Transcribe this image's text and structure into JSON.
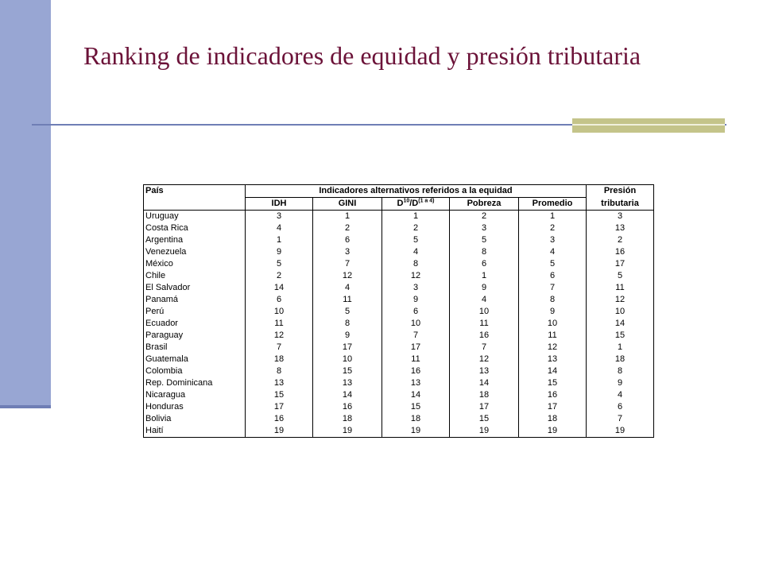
{
  "title": "Ranking de indicadores de equidad y presión tributaria",
  "table": {
    "col_pais": "País",
    "group_header": "Indicadores alternativos referidos a la equidad",
    "presion_line1": "Presión",
    "presion_line2": "tributaria",
    "sub_headers": {
      "idh": "IDH",
      "gini": "GINI",
      "d_main": "D",
      "d_sup1": "10",
      "d_mid": "/D",
      "d_sup2": "(1 a 4)",
      "pobreza": "Pobreza",
      "promedio": "Promedio"
    },
    "rows": [
      {
        "pais": "Uruguay",
        "idh": "3",
        "gini": "1",
        "d": "1",
        "pobreza": "2",
        "promedio": "1",
        "presion": "3"
      },
      {
        "pais": "Costa Rica",
        "idh": "4",
        "gini": "2",
        "d": "2",
        "pobreza": "3",
        "promedio": "2",
        "presion": "13"
      },
      {
        "pais": "Argentina",
        "idh": "1",
        "gini": "6",
        "d": "5",
        "pobreza": "5",
        "promedio": "3",
        "presion": "2"
      },
      {
        "pais": "Venezuela",
        "idh": "9",
        "gini": "3",
        "d": "4",
        "pobreza": "8",
        "promedio": "4",
        "presion": "16"
      },
      {
        "pais": "México",
        "idh": "5",
        "gini": "7",
        "d": "8",
        "pobreza": "6",
        "promedio": "5",
        "presion": "17"
      },
      {
        "pais": "Chile",
        "idh": "2",
        "gini": "12",
        "d": "12",
        "pobreza": "1",
        "promedio": "6",
        "presion": "5"
      },
      {
        "pais": "El Salvador",
        "idh": "14",
        "gini": "4",
        "d": "3",
        "pobreza": "9",
        "promedio": "7",
        "presion": "11"
      },
      {
        "pais": "Panamá",
        "idh": "6",
        "gini": "11",
        "d": "9",
        "pobreza": "4",
        "promedio": "8",
        "presion": "12"
      },
      {
        "pais": "Perú",
        "idh": "10",
        "gini": "5",
        "d": "6",
        "pobreza": "10",
        "promedio": "9",
        "presion": "10"
      },
      {
        "pais": "Ecuador",
        "idh": "11",
        "gini": "8",
        "d": "10",
        "pobreza": "11",
        "promedio": "10",
        "presion": "14"
      },
      {
        "pais": "Paraguay",
        "idh": "12",
        "gini": "9",
        "d": "7",
        "pobreza": "16",
        "promedio": "11",
        "presion": "15"
      },
      {
        "pais": "Brasil",
        "idh": "7",
        "gini": "17",
        "d": "17",
        "pobreza": "7",
        "promedio": "12",
        "presion": "1"
      },
      {
        "pais": "Guatemala",
        "idh": "18",
        "gini": "10",
        "d": "11",
        "pobreza": "12",
        "promedio": "13",
        "presion": "18"
      },
      {
        "pais": "Colombia",
        "idh": "8",
        "gini": "15",
        "d": "16",
        "pobreza": "13",
        "promedio": "14",
        "presion": "8"
      },
      {
        "pais": "Rep. Dominicana",
        "idh": "13",
        "gini": "13",
        "d": "13",
        "pobreza": "14",
        "promedio": "15",
        "presion": "9"
      },
      {
        "pais": "Nicaragua",
        "idh": "15",
        "gini": "14",
        "d": "14",
        "pobreza": "18",
        "promedio": "16",
        "presion": "4"
      },
      {
        "pais": "Honduras",
        "idh": "17",
        "gini": "16",
        "d": "15",
        "pobreza": "17",
        "promedio": "17",
        "presion": "6"
      },
      {
        "pais": "Bolivia",
        "idh": "16",
        "gini": "18",
        "d": "18",
        "pobreza": "15",
        "promedio": "18",
        "presion": "7"
      },
      {
        "pais": "Haití",
        "idh": "19",
        "gini": "19",
        "d": "19",
        "pobreza": "19",
        "promedio": "19",
        "presion": "19"
      }
    ]
  }
}
